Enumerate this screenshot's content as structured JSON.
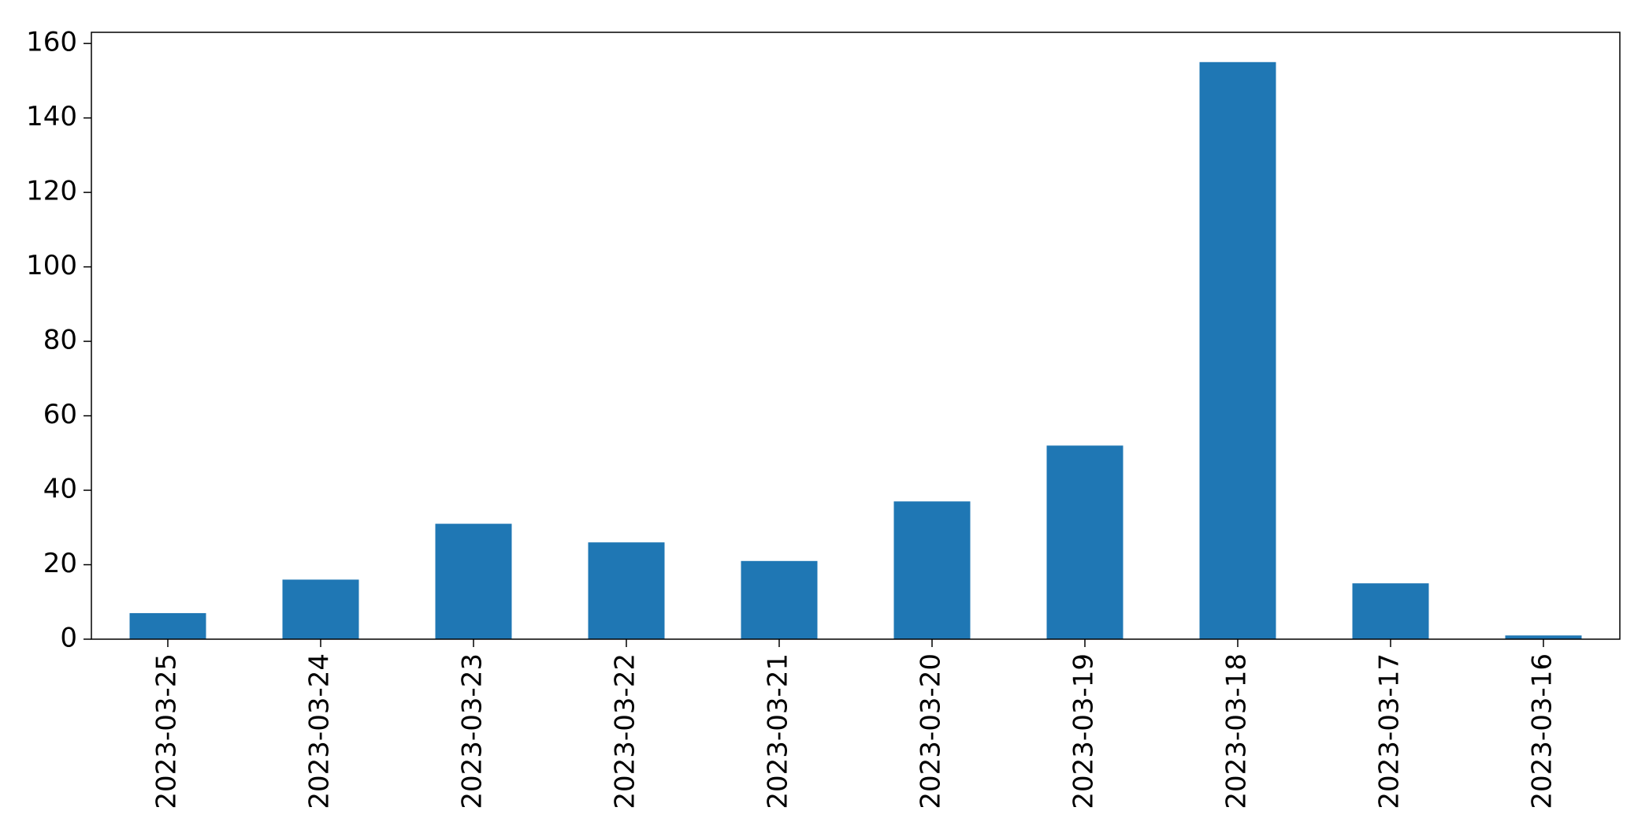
{
  "chart_data": {
    "type": "bar",
    "title": "",
    "xlabel": "",
    "ylabel": "",
    "categories": [
      "2023-03-25",
      "2023-03-24",
      "2023-03-23",
      "2023-03-22",
      "2023-03-21",
      "2023-03-20",
      "2023-03-19",
      "2023-03-18",
      "2023-03-17",
      "2023-03-16"
    ],
    "values": [
      7,
      16,
      31,
      26,
      21,
      37,
      52,
      155,
      15,
      1
    ],
    "ylim": [
      0,
      163
    ],
    "yticks": [
      0,
      20,
      40,
      60,
      80,
      100,
      120,
      140,
      160
    ],
    "grid": false,
    "legend": "none",
    "bar_color": "#1f77b4",
    "x_tick_rotation": "vertical"
  }
}
